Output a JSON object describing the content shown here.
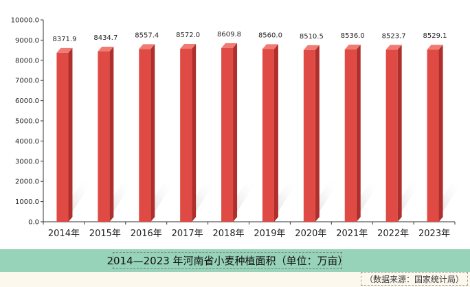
{
  "caption": "2014—2023 年河南省小麦种植面积（单位：万亩）",
  "source": "（数据来源：国家统计局）",
  "colors": {
    "bar_front": "#e04a44",
    "bar_side": "#b02e2c",
    "bar_top": "#ef7b73",
    "caption_band": "#97d3b9",
    "footer_band": "#fcf8ee"
  },
  "chart_data": {
    "type": "bar",
    "categories": [
      "2014年",
      "2015年",
      "2016年",
      "2017年",
      "2018年",
      "2019年",
      "2020年",
      "2021年",
      "2022年",
      "2023年"
    ],
    "values": [
      8371.9,
      8434.7,
      8557.4,
      8572.0,
      8609.8,
      8560.0,
      8510.5,
      8536.0,
      8523.7,
      8529.1
    ],
    "value_labels": [
      "8371.9",
      "8434.7",
      "8557.4",
      "8572.0",
      "8609.8",
      "8560.0",
      "8510.5",
      "8536.0",
      "8523.7",
      "8529.1"
    ],
    "y_ticks": [
      "0.0",
      "1000.0",
      "2000.0",
      "3000.0",
      "4000.0",
      "5000.0",
      "6000.0",
      "7000.0",
      "8000.0",
      "9000.0",
      "10000.0"
    ],
    "ylim": [
      0,
      10000
    ],
    "grid": false,
    "style": "3d-bar"
  }
}
